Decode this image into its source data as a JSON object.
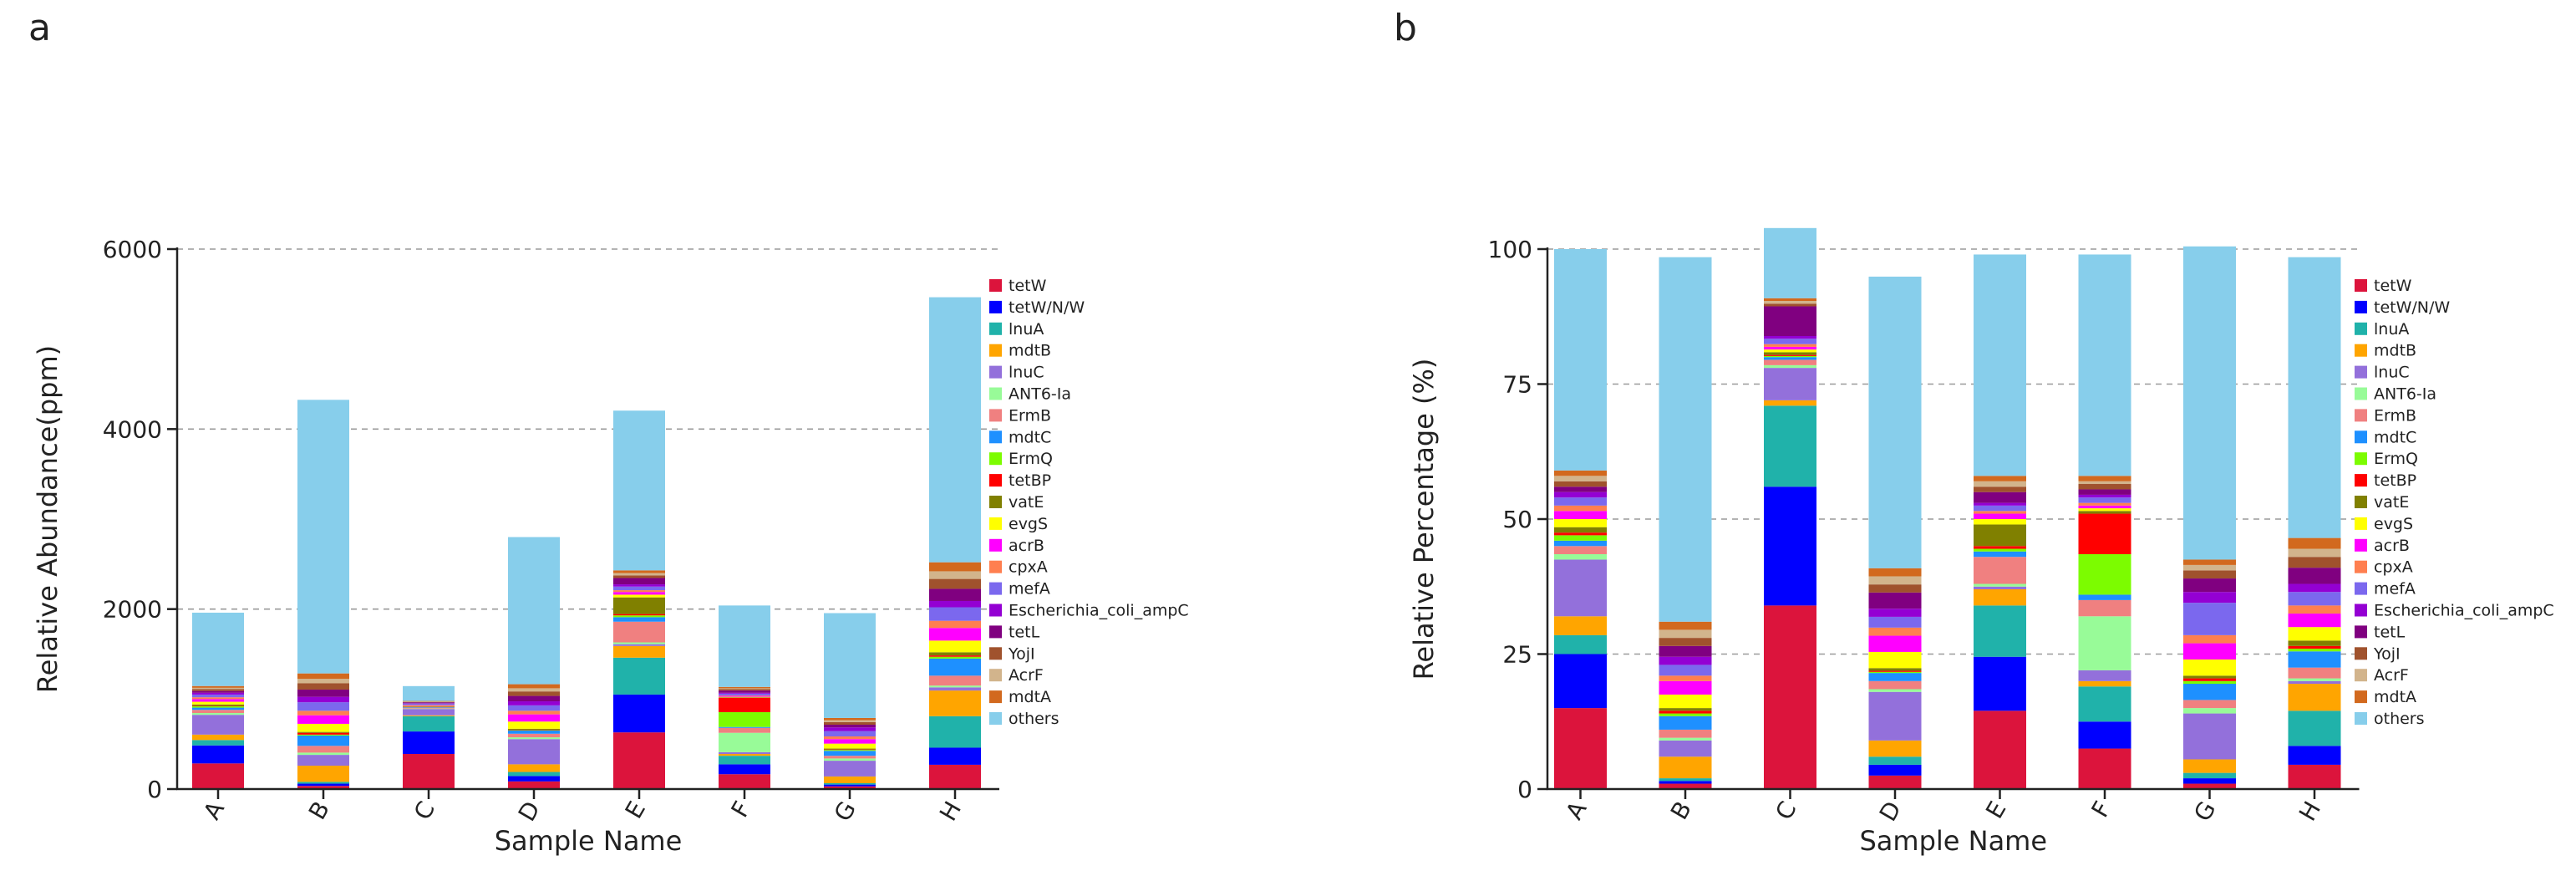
{
  "chart_data": [
    {
      "type": "bar",
      "stacked": true,
      "panel_label": "a",
      "title": "",
      "xlabel": "Sample Name",
      "ylabel": "Relative Abundance(ppm)",
      "ylim": [
        0,
        6000
      ],
      "yticks": [
        0,
        2000,
        4000,
        6000
      ],
      "ytick_labels": [
        "0",
        "2000",
        "4000",
        "6000"
      ],
      "grid": true,
      "legend_position": "right",
      "categories": [
        "A",
        "B",
        "C",
        "D",
        "E",
        "F",
        "G",
        "H"
      ],
      "series": [
        {
          "name": "tetW",
          "color": "#DC143C",
          "values": [
            285,
            35,
            390,
            85,
            630,
            165,
            30,
            270
          ]
        },
        {
          "name": "tetW/N/W",
          "color": "#0000FF",
          "values": [
            200,
            25,
            250,
            60,
            420,
            110,
            20,
            190
          ]
        },
        {
          "name": "lnuA",
          "color": "#20B2AA",
          "values": [
            60,
            20,
            170,
            45,
            410,
            95,
            15,
            350
          ]
        },
        {
          "name": "mdtB",
          "color": "#FFA500",
          "values": [
            60,
            180,
            10,
            85,
            130,
            20,
            75,
            285
          ]
        },
        {
          "name": "lnuC",
          "color": "#9370DB",
          "values": [
            220,
            120,
            70,
            280,
            20,
            20,
            175,
            35
          ]
        },
        {
          "name": "ANT6-Ia",
          "color": "#98FB98",
          "values": [
            20,
            25,
            5,
            20,
            20,
            215,
            25,
            20
          ]
        },
        {
          "name": "ErmB",
          "color": "#F08080",
          "values": [
            35,
            75,
            10,
            40,
            230,
            55,
            30,
            110
          ]
        },
        {
          "name": "mdtC",
          "color": "#1E90FF",
          "values": [
            25,
            115,
            5,
            35,
            50,
            10,
            55,
            190
          ]
        },
        {
          "name": "ErmQ",
          "color": "#7CFC00",
          "values": [
            15,
            10,
            2,
            5,
            20,
            165,
            10,
            20
          ]
        },
        {
          "name": "tetBP",
          "color": "#FF0000",
          "values": [
            5,
            20,
            2,
            5,
            15,
            160,
            5,
            15
          ]
        },
        {
          "name": "vatE",
          "color": "#808000",
          "values": [
            15,
            10,
            5,
            10,
            185,
            5,
            10,
            35
          ]
        },
        {
          "name": "evgS",
          "color": "#FFFF00",
          "values": [
            30,
            90,
            5,
            80,
            30,
            5,
            55,
            130
          ]
        },
        {
          "name": "acrB",
          "color": "#FF00FF",
          "values": [
            30,
            95,
            5,
            80,
            30,
            10,
            50,
            140
          ]
        },
        {
          "name": "cpxA",
          "color": "#FF7F50",
          "values": [
            20,
            50,
            5,
            40,
            20,
            5,
            30,
            80
          ]
        },
        {
          "name": "mefA",
          "color": "#7B68EE",
          "values": [
            30,
            95,
            15,
            60,
            40,
            20,
            60,
            150
          ]
        },
        {
          "name": "Escherichia_coli_ampC",
          "color": "#9400D3",
          "values": [
            20,
            60,
            5,
            45,
            25,
            10,
            40,
            70
          ]
        },
        {
          "name": "tetL",
          "color": "#800080",
          "values": [
            20,
            80,
            10,
            60,
            70,
            25,
            30,
            135
          ]
        },
        {
          "name": "YojI",
          "color": "#A0522D",
          "values": [
            20,
            70,
            5,
            50,
            30,
            15,
            30,
            110
          ]
        },
        {
          "name": "AcrF",
          "color": "#D2B48C",
          "values": [
            15,
            50,
            5,
            35,
            25,
            10,
            20,
            85
          ]
        },
        {
          "name": "mdtA",
          "color": "#D2691E",
          "values": [
            20,
            60,
            5,
            45,
            30,
            15,
            25,
            100
          ]
        },
        {
          "name": "others",
          "color": "#87CEEB",
          "values": [
            815,
            3040,
            165,
            1635,
            1775,
            905,
            1165,
            2945
          ]
        }
      ]
    },
    {
      "type": "bar",
      "stacked": true,
      "panel_label": "b",
      "title": "",
      "xlabel": "Sample Name",
      "ylabel": "Relative Percentage (%)",
      "ylim": [
        0,
        100
      ],
      "yticks": [
        0,
        25,
        50,
        75,
        100
      ],
      "ytick_labels": [
        "0",
        "25",
        "50",
        "75",
        "100"
      ],
      "grid": true,
      "legend_position": "right",
      "categories": [
        "A",
        "B",
        "C",
        "D",
        "E",
        "F",
        "G",
        "H"
      ],
      "series": [
        {
          "name": "tetW",
          "color": "#DC143C",
          "values": [
            15.0,
            1.0,
            34.0,
            2.5,
            14.5,
            7.5,
            1.0,
            4.5
          ]
        },
        {
          "name": "tetW/N/W",
          "color": "#0000FF",
          "values": [
            10.0,
            0.5,
            22.0,
            2.0,
            10.0,
            5.0,
            1.0,
            3.5
          ]
        },
        {
          "name": "lnuA",
          "color": "#20B2AA",
          "values": [
            3.5,
            0.5,
            15.0,
            1.5,
            9.5,
            6.5,
            1.0,
            6.5
          ]
        },
        {
          "name": "mdtB",
          "color": "#FFA500",
          "values": [
            3.5,
            4.0,
            1.0,
            3.0,
            3.0,
            1.0,
            2.5,
            5.0
          ]
        },
        {
          "name": "lnuC",
          "color": "#9370DB",
          "values": [
            10.5,
            3.0,
            6.0,
            9.0,
            0.5,
            2.0,
            8.5,
            0.5
          ]
        },
        {
          "name": "ANT6-Ia",
          "color": "#98FB98",
          "values": [
            1.0,
            0.5,
            0.5,
            0.5,
            0.5,
            10.0,
            1.0,
            0.5
          ]
        },
        {
          "name": "ErmB",
          "color": "#F08080",
          "values": [
            1.5,
            1.5,
            1.0,
            1.5,
            5.0,
            3.0,
            1.5,
            2.0
          ]
        },
        {
          "name": "mdtC",
          "color": "#1E90FF",
          "values": [
            1.0,
            2.5,
            0.5,
            1.5,
            1.0,
            1.0,
            3.0,
            3.0
          ]
        },
        {
          "name": "ErmQ",
          "color": "#7CFC00",
          "values": [
            1.0,
            0.5,
            0.2,
            0.2,
            0.5,
            7.5,
            0.5,
            0.5
          ]
        },
        {
          "name": "tetBP",
          "color": "#FF0000",
          "values": [
            0.5,
            0.5,
            0.2,
            0.2,
            0.5,
            7.5,
            0.5,
            0.5
          ]
        },
        {
          "name": "vatE",
          "color": "#808000",
          "values": [
            1.0,
            0.5,
            0.5,
            0.5,
            4.0,
            0.5,
            0.5,
            1.0
          ]
        },
        {
          "name": "evgS",
          "color": "#FFFF00",
          "values": [
            1.5,
            2.5,
            0.5,
            3.0,
            1.0,
            0.5,
            3.0,
            2.5
          ]
        },
        {
          "name": "acrB",
          "color": "#FF00FF",
          "values": [
            1.5,
            2.5,
            0.5,
            3.0,
            1.0,
            0.5,
            3.0,
            2.5
          ]
        },
        {
          "name": "cpxA",
          "color": "#FF7F50",
          "values": [
            1.0,
            1.0,
            0.5,
            1.5,
            0.5,
            0.5,
            1.5,
            1.5
          ]
        },
        {
          "name": "mefA",
          "color": "#7B68EE",
          "values": [
            1.5,
            2.0,
            1.0,
            2.0,
            1.0,
            1.0,
            6.0,
            2.5
          ]
        },
        {
          "name": "Escherichia_coli_ampC",
          "color": "#9400D3",
          "values": [
            1.0,
            1.5,
            0.5,
            1.5,
            0.5,
            0.5,
            2.0,
            1.5
          ]
        },
        {
          "name": "tetL",
          "color": "#800080",
          "values": [
            1.0,
            2.0,
            5.5,
            3.0,
            2.0,
            1.0,
            2.5,
            3.0
          ]
        },
        {
          "name": "YojI",
          "color": "#A0522D",
          "values": [
            1.0,
            1.5,
            0.5,
            1.5,
            1.0,
            1.0,
            1.5,
            2.0
          ]
        },
        {
          "name": "AcrF",
          "color": "#D2B48C",
          "values": [
            1.0,
            1.5,
            0.5,
            1.5,
            1.0,
            0.5,
            1.0,
            1.5
          ]
        },
        {
          "name": "mdtA",
          "color": "#D2691E",
          "values": [
            1.0,
            1.5,
            0.5,
            1.5,
            1.0,
            1.0,
            1.0,
            2.0
          ]
        },
        {
          "name": "others",
          "color": "#87CEEB",
          "values": [
            41.0,
            67.5,
            13.0,
            54.0,
            41.0,
            41.0,
            58.0,
            52.0
          ]
        }
      ]
    }
  ]
}
